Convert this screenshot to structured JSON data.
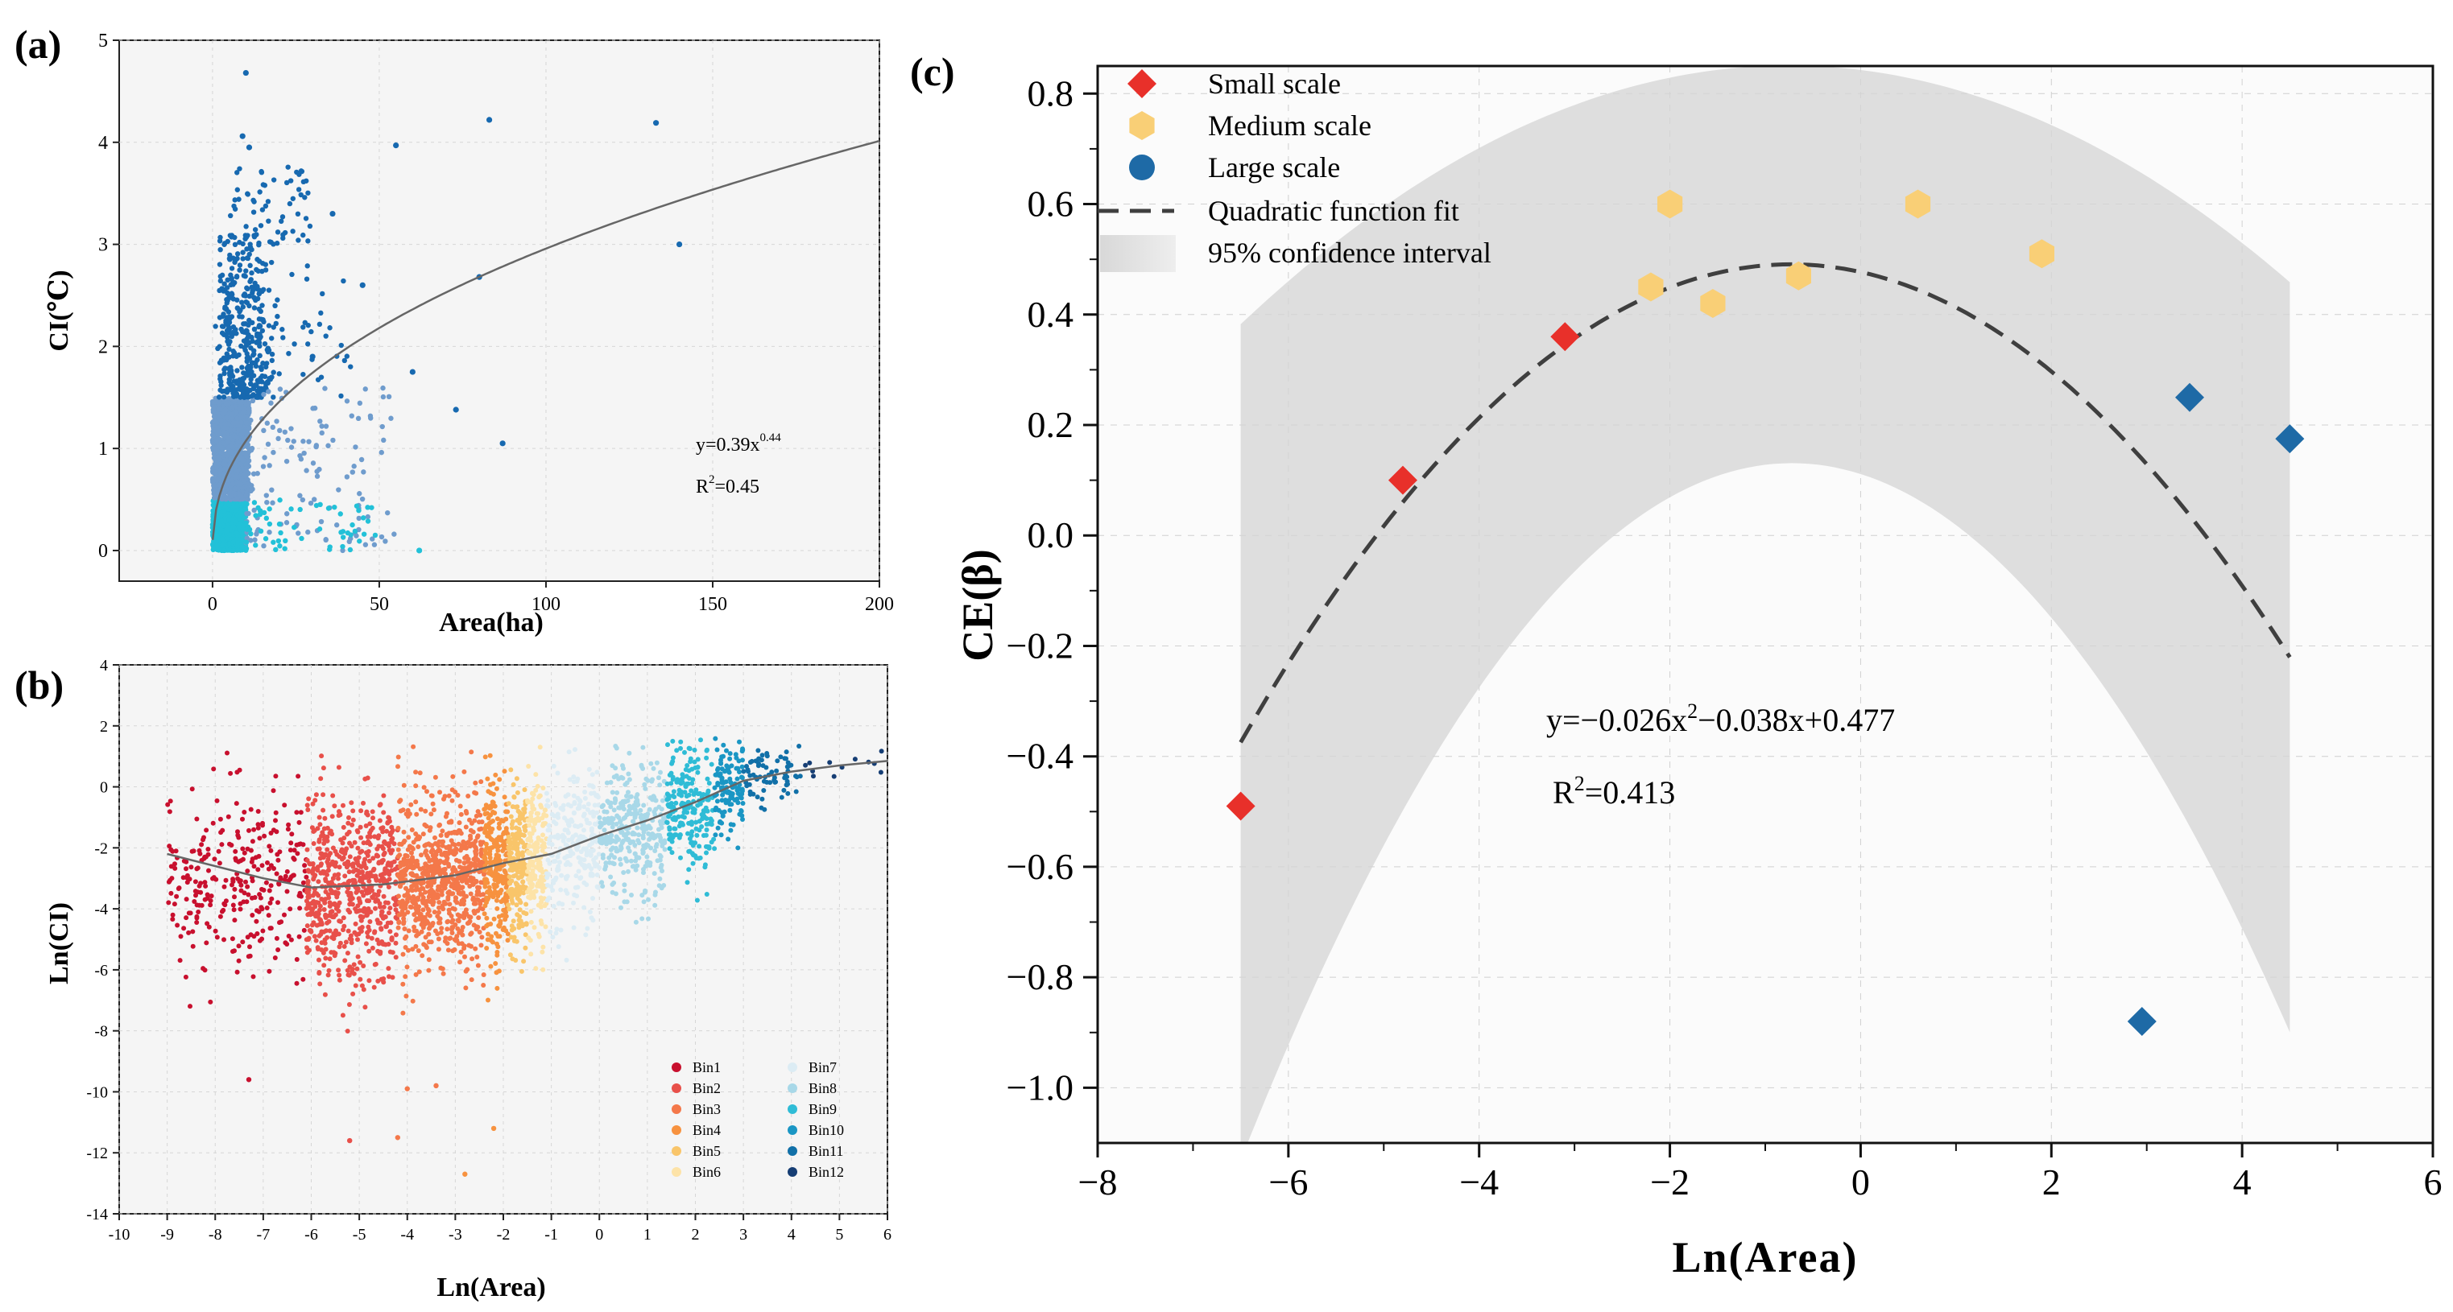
{
  "panel_a": {
    "label": "(a)",
    "xlabel": "Area(ha)",
    "ylabel": "CI(℃)",
    "xticks": [
      "0",
      "50",
      "100",
      "150",
      "200"
    ],
    "yticks": [
      "0",
      "1",
      "2",
      "3",
      "4",
      "5"
    ],
    "equation": "y=0.39x",
    "equation_exp": "0.44",
    "r2_prefix": "R",
    "r2_sup": "2",
    "r2_value": "=0.45"
  },
  "panel_b": {
    "label": "(b)",
    "xlabel": "Ln(Area)",
    "ylabel": "Ln(CI)",
    "xticks": [
      "-10",
      "-9",
      "-8",
      "-7",
      "-6",
      "-5",
      "-4",
      "-3",
      "-2",
      "-1",
      "0",
      "1",
      "2",
      "3",
      "4",
      "5",
      "6"
    ],
    "yticks": [
      "4",
      "2",
      "0",
      "-2",
      "-4",
      "-6",
      "-8",
      "-10",
      "-12",
      "-14"
    ],
    "legend": [
      "Bin1",
      "Bin2",
      "Bin3",
      "Bin4",
      "Bin5",
      "Bin6",
      "Bin7",
      "Bin8",
      "Bin9",
      "Bin10",
      "Bin11",
      "Bin12"
    ],
    "bin_colors": [
      "#c8102e",
      "#e8504a",
      "#f4784a",
      "#f7923f",
      "#f9c56a",
      "#fde3a8",
      "#dcecf4",
      "#a8d8e8",
      "#2fbcd6",
      "#1a96c4",
      "#1170a8",
      "#163e74"
    ]
  },
  "chart_data": [
    {
      "panel": "a",
      "type": "scatter",
      "title": "",
      "xlabel": "Area(ha)",
      "ylabel": "CI(℃)",
      "xlim": [
        -28,
        200
      ],
      "ylim": [
        -0.3,
        5
      ],
      "fit": {
        "model": "power",
        "a": 0.39,
        "b": 0.44,
        "label": "y=0.39x^0.44",
        "r2": 0.45
      },
      "highlighted_points": [
        [
          10,
          4.68
        ],
        [
          9,
          4.06
        ],
        [
          11,
          3.95
        ],
        [
          55,
          3.97
        ],
        [
          83,
          4.22
        ],
        [
          133,
          4.19
        ],
        [
          140,
          3.0
        ],
        [
          80,
          2.68
        ],
        [
          87,
          1.05
        ],
        [
          62,
          0.0
        ],
        [
          73,
          1.38
        ],
        [
          60,
          1.75
        ],
        [
          45,
          2.6
        ],
        [
          36,
          3.3
        ],
        [
          30,
          1.9
        ]
      ]
    },
    {
      "panel": "b",
      "type": "scatter",
      "title": "",
      "xlabel": "Ln(Area)",
      "ylabel": "Ln(CI)",
      "xlim": [
        -10,
        6
      ],
      "ylim": [
        -14,
        4
      ],
      "series_names": [
        "Bin1",
        "Bin2",
        "Bin3",
        "Bin4",
        "Bin5",
        "Bin6",
        "Bin7",
        "Bin8",
        "Bin9",
        "Bin10",
        "Bin11",
        "Bin12"
      ],
      "trend": {
        "x": [
          -9,
          -7,
          -6,
          -4.5,
          -3,
          -2,
          -1,
          0,
          1,
          2,
          3,
          4,
          5,
          6
        ],
        "y": [
          -2.2,
          -3,
          -3.3,
          -3.2,
          -2.9,
          -2.5,
          -2.2,
          -1.6,
          -1.1,
          -0.5,
          0.2,
          0.5,
          0.7,
          0.85
        ]
      }
    },
    {
      "panel": "c",
      "type": "scatter",
      "title": "",
      "label": "(c)",
      "xlabel": "Ln(Area)",
      "ylabel": "CE(β)",
      "xlim": [
        -8,
        6
      ],
      "ylim": [
        -1.1,
        0.85
      ],
      "xticks": [
        "−8",
        "−6",
        "−4",
        "−2",
        "0",
        "2",
        "4",
        "6"
      ],
      "yticks": [
        "0.8",
        "0.6",
        "0.4",
        "0.2",
        "0.0",
        "−0.2",
        "−0.4",
        "−0.6",
        "−0.8",
        "−1.0"
      ],
      "series": [
        {
          "name": "Small scale",
          "marker": "diamond",
          "color": "#e8302a",
          "points": [
            [
              -6.5,
              -0.49
            ],
            [
              -4.8,
              0.1
            ],
            [
              -3.1,
              0.36
            ]
          ]
        },
        {
          "name": "Medium scale",
          "marker": "hexagon",
          "color": "#f9cf76",
          "points": [
            [
              -2.2,
              0.45
            ],
            [
              -2.0,
              0.6
            ],
            [
              -1.55,
              0.42
            ],
            [
              -0.65,
              0.47
            ],
            [
              0.6,
              0.6
            ],
            [
              1.9,
              0.51
            ]
          ]
        },
        {
          "name": "Large scale",
          "marker": "circle",
          "color": "#1e6aa6",
          "points": [
            [
              2.95,
              -0.88
            ],
            [
              3.45,
              0.25
            ],
            [
              4.5,
              0.175
            ]
          ]
        }
      ],
      "fit": {
        "model": "quadratic",
        "a": -0.026,
        "b": -0.038,
        "c": 0.477,
        "xrange": [
          -6.5,
          4.5
        ],
        "label": "Quadratic function fit"
      },
      "confidence_band": {
        "label": "95% confidence interval"
      },
      "equation": {
        "prefix": "y=−0.026x",
        "sup": "2",
        "suffix": "−0.038x+0.477"
      },
      "r2": {
        "prefix": "R",
        "sup": "2",
        "value": "=0.413"
      },
      "legend": [
        "Small scale",
        "Medium scale",
        "Large scale",
        "Quadratic function fit",
        "95% confidence interval"
      ]
    }
  ]
}
